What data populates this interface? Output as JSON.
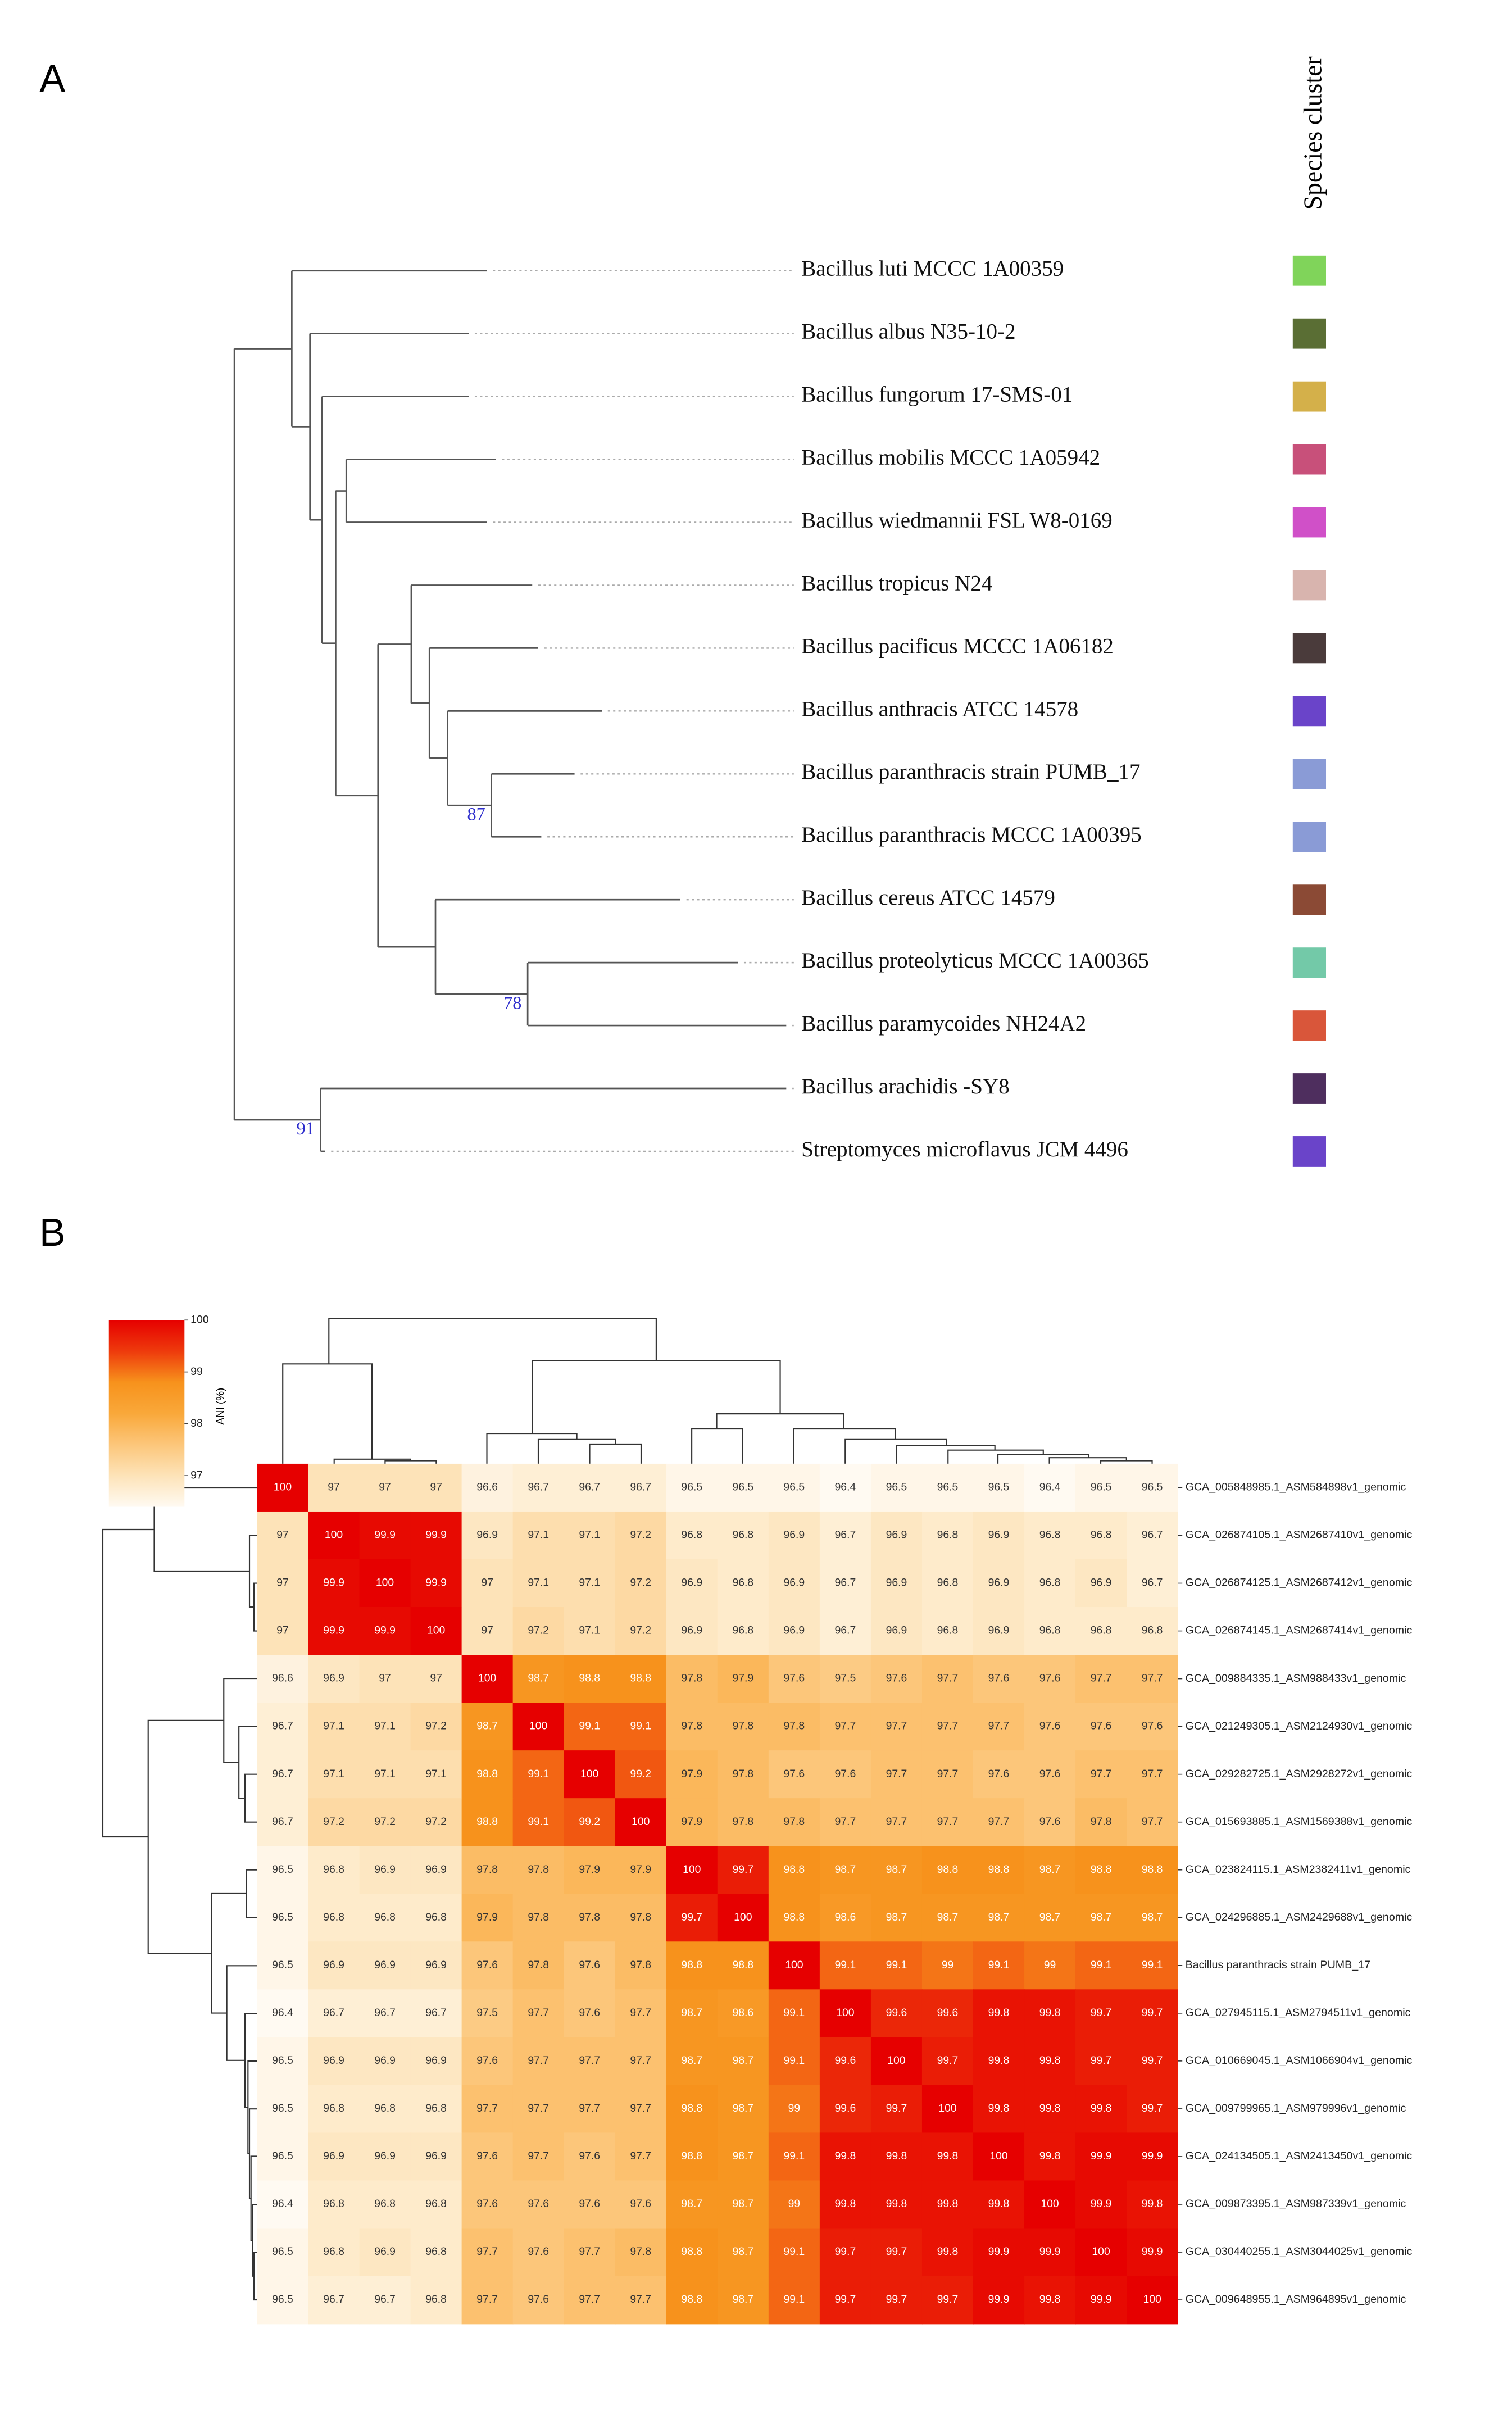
{
  "chart_data": [
    {
      "type": "tree",
      "panel": "A",
      "legend_title": "Species cluster",
      "tree": {
        "children": [
          {
            "length": 38,
            "children": [
              {
                "length": 129,
                "name": "Bacillus luti MCCC 1A00359",
                "color": "#80d45a"
              },
              {
                "length": 12,
                "children": [
                  {
                    "length": 105,
                    "name": "Bacillus albus N35-10-2",
                    "color": "#5a6e34"
                  },
                  {
                    "length": 8,
                    "children": [
                      {
                        "length": 97,
                        "name": "Bacillus fungorum 17-SMS-01",
                        "color": "#d4b04a"
                      },
                      {
                        "length": 9,
                        "children": [
                          {
                            "length": 7,
                            "children": [
                              {
                                "length": 99,
                                "name": "Bacillus mobilis MCCC 1A05942",
                                "color": "#c8507a"
                              },
                              {
                                "length": 93,
                                "name": "Bacillus wiedmannii FSL W8-0169",
                                "color": "#d050c8"
                              }
                            ]
                          },
                          {
                            "length": 28,
                            "children": [
                              {
                                "length": 22,
                                "children": [
                                  {
                                    "length": 80,
                                    "name": "Bacillus tropicus N24",
                                    "color": "#d8b4ae"
                                  },
                                  {
                                    "length": 12,
                                    "children": [
                                      {
                                        "length": 72,
                                        "name": "Bacillus pacificus MCCC 1A06182",
                                        "color": "#4a3b3b"
                                      },
                                      {
                                        "length": 12,
                                        "children": [
                                          {
                                            "length": 102,
                                            "name": "Bacillus anthracis ATCC 14578",
                                            "color": "#6a44c9"
                                          },
                                          {
                                            "length": 29,
                                            "support": "87",
                                            "children": [
                                              {
                                                "length": 55,
                                                "name": "Bacillus paranthracis strain PUMB_17",
                                                "color": "#8a9bd6"
                                              },
                                              {
                                                "length": 33,
                                                "name": "Bacillus paranthracis MCCC 1A00395",
                                                "color": "#8a9bd6"
                                              }
                                            ]
                                          }
                                        ]
                                      }
                                    ]
                                  }
                                ]
                              },
                              {
                                "length": 38,
                                "children": [
                                  {
                                    "length": 162,
                                    "name": "Bacillus cereus ATCC 14579",
                                    "color": "#8b4a35"
                                  },
                                  {
                                    "length": 61,
                                    "support": "78",
                                    "children": [
                                      {
                                        "length": 139,
                                        "name": "Bacillus proteolyticus MCCC 1A00365",
                                        "color": "#73c9a8"
                                      },
                                      {
                                        "length": 171,
                                        "name": "Bacillus paramycoides NH24A2",
                                        "color": "#d9563a"
                                      }
                                    ]
                                  }
                                ]
                              }
                            ]
                          }
                        ]
                      }
                    ]
                  }
                ]
              }
            ]
          },
          {
            "length": 57,
            "support": "91",
            "children": [
              {
                "length": 308,
                "name": "Bacillus arachidis -SY8",
                "color": "#4e2e5e"
              },
              {
                "length": 3,
                "name": "Streptomyces microflavus JCM 4496",
                "color": "#6a44c9"
              }
            ]
          }
        ]
      }
    },
    {
      "type": "heatmap",
      "panel": "B",
      "colorbar_label": "ANI (%)",
      "zlim": [
        96.4,
        100
      ],
      "zticks": [
        97,
        98,
        99,
        100
      ],
      "colors": [
        "#fffaf2",
        "#fde3b8",
        "#fcc67a",
        "#f9a83a",
        "#f7921c",
        "#ee3a0c",
        "#e60000"
      ],
      "rows": [
        "GCA_005848985.1_ASM584898v1_genomic",
        "GCA_026874105.1_ASM2687410v1_genomic",
        "GCA_026874125.1_ASM2687412v1_genomic",
        "GCA_026874145.1_ASM2687414v1_genomic",
        "GCA_009884335.1_ASM988433v1_genomic",
        "GCA_021249305.1_ASM2124930v1_genomic",
        "GCA_029282725.1_ASM2928272v1_genomic",
        "GCA_015693885.1_ASM1569388v1_genomic",
        "GCA_023824115.1_ASM2382411v1_genomic",
        "GCA_024296885.1_ASM2429688v1_genomic",
        "Bacillus paranthracis strain PUMB_17",
        "GCA_027945115.1_ASM2794511v1_genomic",
        "GCA_010669045.1_ASM1066904v1_genomic",
        "GCA_009799965.1_ASM979996v1_genomic",
        "GCA_024134505.1_ASM2413450v1_genomic",
        "GCA_009873395.1_ASM987339v1_genomic",
        "GCA_030440255.1_ASM3044025v1_genomic",
        "GCA_009648955.1_ASM964895v1_genomic"
      ],
      "values": [
        [
          100,
          97,
          97,
          97,
          96.6,
          96.7,
          96.7,
          96.7,
          96.5,
          96.5,
          96.5,
          96.4,
          96.5,
          96.5,
          96.5,
          96.4,
          96.5,
          96.5
        ],
        [
          97,
          100,
          99.9,
          99.9,
          96.9,
          97.1,
          97.1,
          97.2,
          96.8,
          96.8,
          96.9,
          96.7,
          96.9,
          96.8,
          96.9,
          96.8,
          96.8,
          96.7
        ],
        [
          97,
          99.9,
          100,
          99.9,
          97,
          97.1,
          97.1,
          97.2,
          96.9,
          96.8,
          96.9,
          96.7,
          96.9,
          96.8,
          96.9,
          96.8,
          96.9,
          96.7
        ],
        [
          97,
          99.9,
          99.9,
          100,
          97,
          97.2,
          97.1,
          97.2,
          96.9,
          96.8,
          96.9,
          96.7,
          96.9,
          96.8,
          96.9,
          96.8,
          96.8,
          96.8
        ],
        [
          96.6,
          96.9,
          97,
          97,
          100,
          98.7,
          98.8,
          98.8,
          97.8,
          97.9,
          97.6,
          97.5,
          97.6,
          97.7,
          97.6,
          97.6,
          97.7,
          97.7
        ],
        [
          96.7,
          97.1,
          97.1,
          97.2,
          98.7,
          100,
          99.1,
          99.1,
          97.8,
          97.8,
          97.8,
          97.7,
          97.7,
          97.7,
          97.7,
          97.6,
          97.6,
          97.6
        ],
        [
          96.7,
          97.1,
          97.1,
          97.1,
          98.8,
          99.1,
          100,
          99.2,
          97.9,
          97.8,
          97.6,
          97.6,
          97.7,
          97.7,
          97.6,
          97.6,
          97.7,
          97.7
        ],
        [
          96.7,
          97.2,
          97.2,
          97.2,
          98.8,
          99.1,
          99.2,
          100,
          97.9,
          97.8,
          97.8,
          97.7,
          97.7,
          97.7,
          97.7,
          97.6,
          97.8,
          97.7
        ],
        [
          96.5,
          96.8,
          96.9,
          96.9,
          97.8,
          97.8,
          97.9,
          97.9,
          100,
          99.7,
          98.8,
          98.7,
          98.7,
          98.8,
          98.8,
          98.7,
          98.8,
          98.8
        ],
        [
          96.5,
          96.8,
          96.8,
          96.8,
          97.9,
          97.8,
          97.8,
          97.8,
          99.7,
          100,
          98.8,
          98.6,
          98.7,
          98.7,
          98.7,
          98.7,
          98.7,
          98.7
        ],
        [
          96.5,
          96.9,
          96.9,
          96.9,
          97.6,
          97.8,
          97.6,
          97.8,
          98.8,
          98.8,
          100,
          99.1,
          99.1,
          99,
          99.1,
          99,
          99.1,
          99.1
        ],
        [
          96.4,
          96.7,
          96.7,
          96.7,
          97.5,
          97.7,
          97.6,
          97.7,
          98.7,
          98.6,
          99.1,
          100,
          99.6,
          99.6,
          99.8,
          99.8,
          99.7,
          99.7
        ],
        [
          96.5,
          96.9,
          96.9,
          96.9,
          97.6,
          97.7,
          97.7,
          97.7,
          98.7,
          98.7,
          99.1,
          99.6,
          100,
          99.7,
          99.8,
          99.8,
          99.7,
          99.7
        ],
        [
          96.5,
          96.8,
          96.8,
          96.8,
          97.7,
          97.7,
          97.7,
          97.7,
          98.8,
          98.7,
          99,
          99.6,
          99.7,
          100,
          99.8,
          99.8,
          99.8,
          99.7
        ],
        [
          96.5,
          96.9,
          96.9,
          96.9,
          97.6,
          97.7,
          97.6,
          97.7,
          98.8,
          98.7,
          99.1,
          99.8,
          99.8,
          99.8,
          100,
          99.8,
          99.9,
          99.9
        ],
        [
          96.4,
          96.8,
          96.8,
          96.8,
          97.6,
          97.6,
          97.6,
          97.6,
          98.7,
          98.7,
          99,
          99.8,
          99.8,
          99.8,
          99.8,
          100,
          99.9,
          99.8
        ],
        [
          96.5,
          96.8,
          96.9,
          96.8,
          97.7,
          97.6,
          97.7,
          97.8,
          98.8,
          98.7,
          99.1,
          99.7,
          99.7,
          99.8,
          99.9,
          99.9,
          100,
          99.9
        ],
        [
          96.5,
          96.7,
          96.7,
          96.8,
          97.7,
          97.6,
          97.7,
          97.7,
          98.8,
          98.7,
          99.1,
          99.7,
          99.7,
          99.7,
          99.9,
          99.8,
          99.9,
          100
        ]
      ]
    }
  ]
}
